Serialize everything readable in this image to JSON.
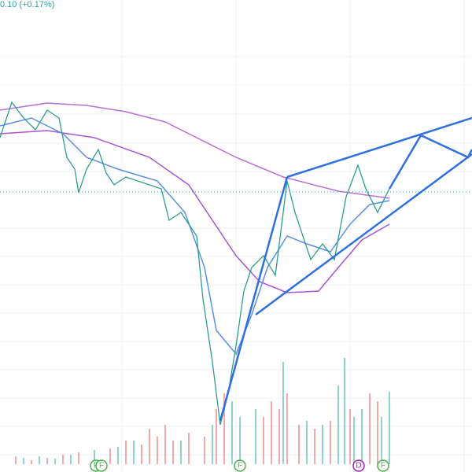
{
  "header": {
    "change": "0.10 (+0.17%)"
  },
  "events": [
    {
      "label": "F"
    },
    {
      "label": "F"
    },
    {
      "label": "F"
    },
    {
      "label": "D"
    },
    {
      "label": "F"
    }
  ]
}
